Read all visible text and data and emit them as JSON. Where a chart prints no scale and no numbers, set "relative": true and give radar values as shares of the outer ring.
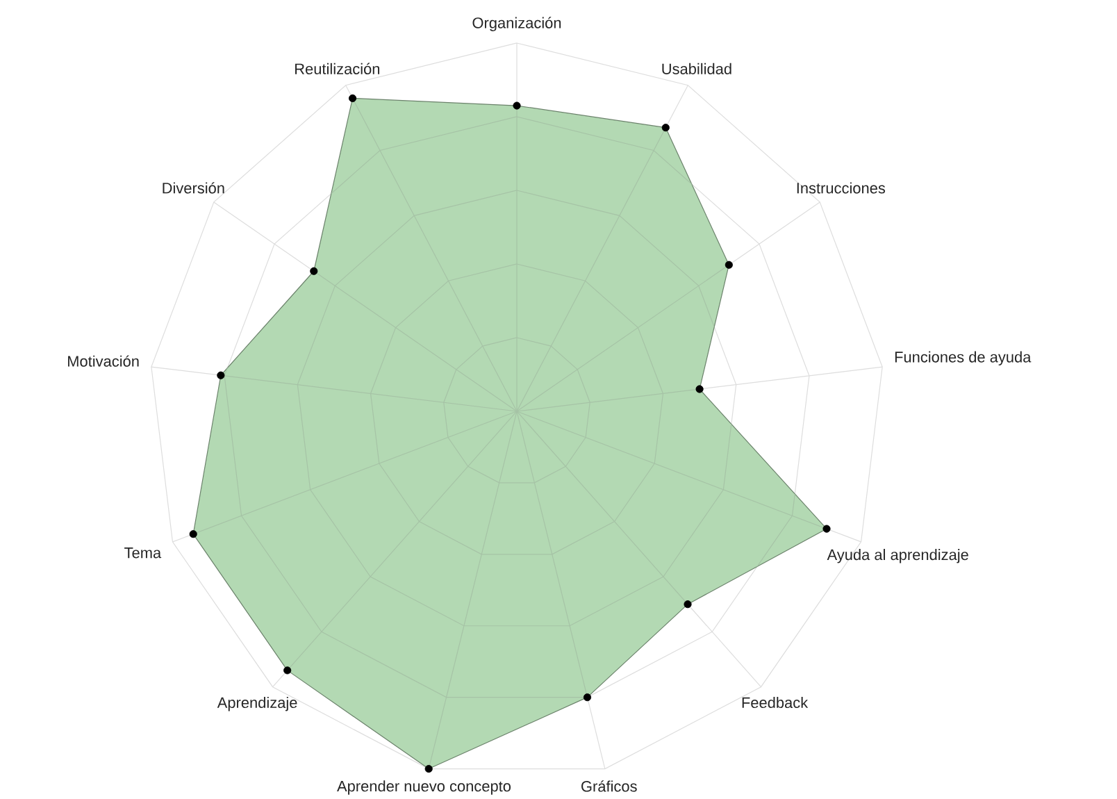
{
  "chart_data": {
    "type": "radar",
    "relative": true,
    "marker": "circle",
    "categories": [
      "Organización",
      "Usabilidad",
      "Instrucciones",
      "Funciones de ayuda",
      "Ayuda al aprendizaje",
      "Feedback",
      "Gráficos",
      "Aprender nuevo concepto",
      "Aprendizaje",
      "Tema",
      "Motivación",
      "Diversión",
      "Reutilización"
    ],
    "series": [
      {
        "color": "#b3d9b3",
        "values": [
          0.83,
          0.87,
          0.7,
          0.5,
          0.9,
          0.7,
          0.8,
          1.0,
          0.94,
          0.94,
          0.81,
          0.67,
          0.96
        ]
      }
    ]
  }
}
